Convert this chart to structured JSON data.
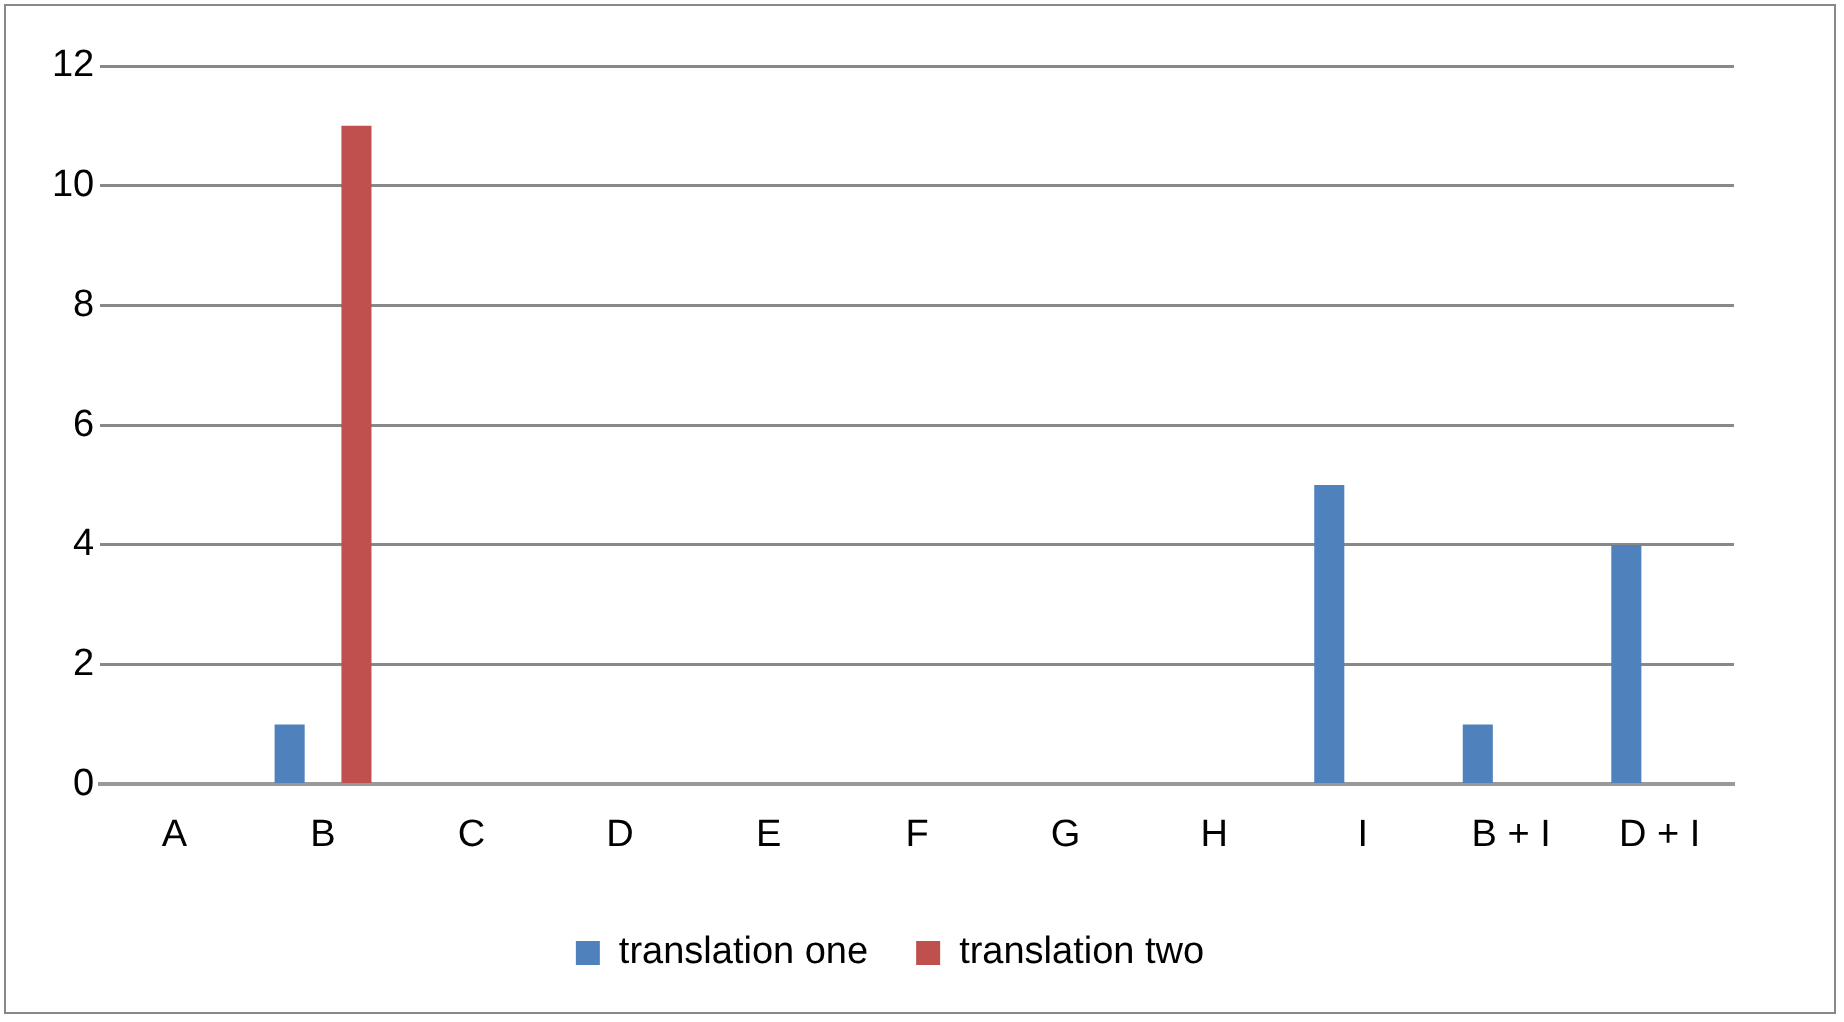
{
  "chart_data": {
    "type": "bar",
    "categories": [
      "A",
      "B",
      "C",
      "D",
      "E",
      "F",
      "G",
      "H",
      "I",
      "B + I",
      "D + I"
    ],
    "series": [
      {
        "name": "translation one",
        "color": "#4f81bd",
        "values": [
          0,
          1,
          0,
          0,
          0,
          0,
          0,
          0,
          5,
          1,
          4
        ]
      },
      {
        "name": "translation two",
        "color": "#c0504d",
        "values": [
          0,
          11,
          0,
          0,
          0,
          0,
          0,
          0,
          0,
          0,
          0
        ]
      }
    ],
    "ylim": [
      0,
      12
    ],
    "yticks": [
      0,
      2,
      4,
      6,
      8,
      10,
      12
    ],
    "grid": "y",
    "legend": "bottom"
  }
}
